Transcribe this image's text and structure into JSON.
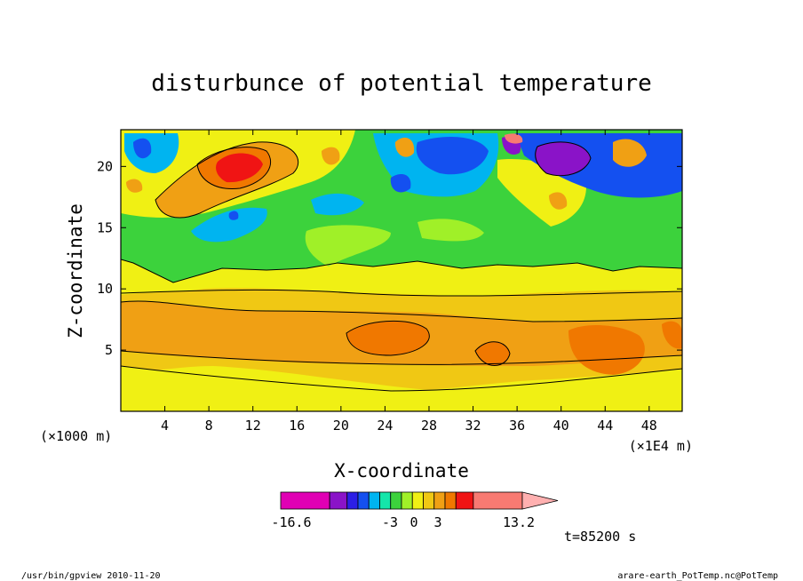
{
  "chart_data": {
    "type": "heatmap",
    "title": "disturbunce of potential temperature",
    "xlabel": "X-coordinate",
    "ylabel": "Z-coordinate",
    "x_unit_left": "(×1000 m)",
    "x_unit_right": "(×1E4 m)",
    "xticks": [
      4,
      8,
      12,
      16,
      20,
      24,
      28,
      32,
      36,
      40,
      44,
      48
    ],
    "yticks": [
      5,
      10,
      15,
      20
    ],
    "xlim": [
      0,
      51
    ],
    "ylim": [
      0,
      23
    ],
    "colorbar": {
      "labels": [
        {
          "text": "-16.6",
          "value": -16.6
        },
        {
          "text": "-3",
          "value": -3
        },
        {
          "text": "0",
          "value": 0
        },
        {
          "text": "3",
          "value": 3
        },
        {
          "text": "13.2",
          "value": 13.2
        }
      ],
      "colors": [
        "#e000b4",
        "#8a13c8",
        "#2c1ee6",
        "#1450f0",
        "#00b4f0",
        "#14e6aa",
        "#3cd23c",
        "#a0f028",
        "#f0f014",
        "#f0c814",
        "#f0a014",
        "#f07800",
        "#f01414",
        "#f87a72",
        "#ffb0b0"
      ]
    },
    "time_label": "t=85200 s",
    "footer_left": "/usr/bin/gpview  2010-11-20",
    "footer_right": "arare-earth_PotTemp.nc@PotTemp"
  }
}
